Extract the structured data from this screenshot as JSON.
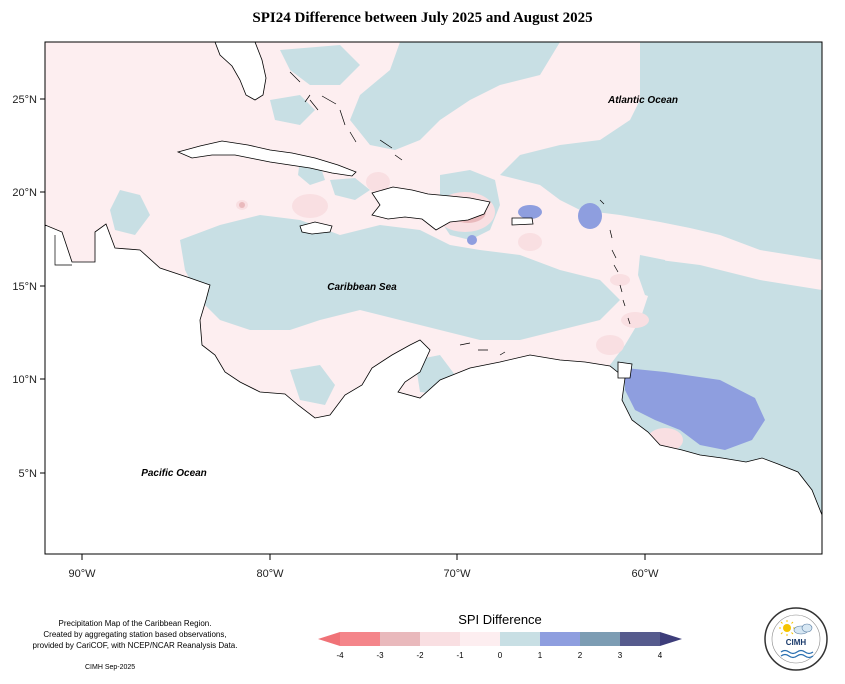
{
  "title": "SPI24 Difference between July 2025 and August 2025",
  "axes": {
    "latitude_labels": [
      "25°N",
      "20°N",
      "15°N",
      "10°N",
      "5°N"
    ],
    "longitude_labels": [
      "90°W",
      "80°W",
      "70°W",
      "60°W"
    ]
  },
  "map_labels": {
    "atlantic": "Atlantic Ocean",
    "caribbean": "Caribbean Sea",
    "pacific": "Pacific Ocean"
  },
  "footer": {
    "line1": "Precipitation Map of the Caribbean Region.",
    "line2": "Created by aggregating station based observations,",
    "line3": "provided by CariCOF, with NCEP/NCAR Reanalysis Data.",
    "credit": "CIMH Sep-2025"
  },
  "legend": {
    "title": "SPI Difference",
    "ticks": [
      "-4",
      "-3",
      "-2",
      "-1",
      "0",
      "1",
      "2",
      "3",
      "4"
    ],
    "colors": [
      "#f4858a",
      "#e9b9bc",
      "#f9dfe2",
      "#fdeef0",
      "#c8dfe4",
      "#8e9edf",
      "#7c9cb3",
      "#565b8d"
    ],
    "arrow_left_color": "#f07277",
    "arrow_right_color": "#3d3d7a"
  },
  "logo": {
    "text": "CIMH"
  }
}
